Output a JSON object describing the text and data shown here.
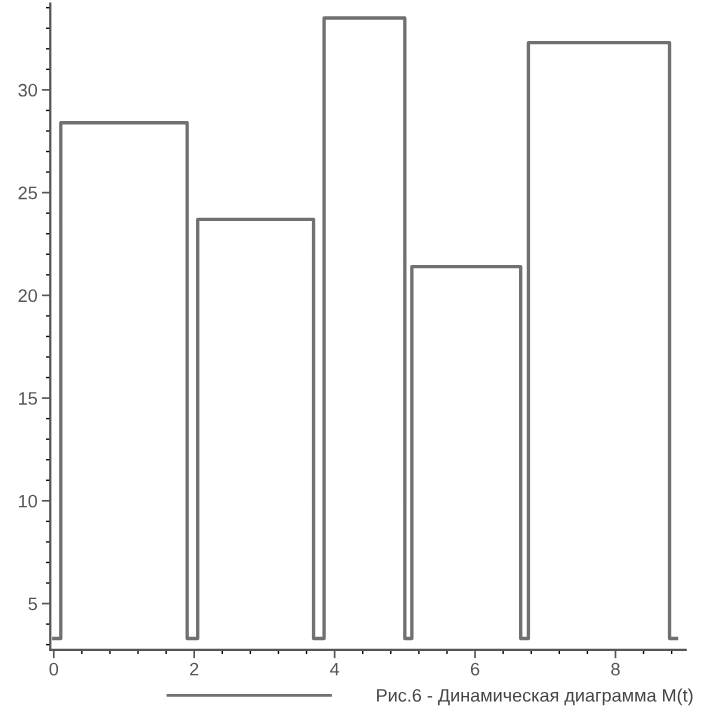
{
  "chart_data": {
    "type": "line",
    "x": [
      0.0,
      0.1,
      0.1,
      1.9,
      1.9,
      2.05,
      2.05,
      3.7,
      3.7,
      3.85,
      3.85,
      5.0,
      5.0,
      5.1,
      5.1,
      6.65,
      6.65,
      6.76,
      6.76,
      8.77,
      8.77,
      8.87
    ],
    "series": [
      {
        "name": "Рис.6 - Динамическая диаграмма M(t)",
        "color": "#707070",
        "values": [
          3.3,
          3.3,
          28.4,
          28.4,
          3.3,
          3.3,
          23.7,
          23.7,
          3.3,
          3.3,
          33.5,
          33.5,
          3.3,
          3.3,
          21.4,
          21.4,
          3.3,
          3.3,
          32.3,
          32.3,
          3.3,
          3.3
        ]
      }
    ],
    "xlim": [
      -0.05,
      9.0
    ],
    "ylim": [
      2.75,
      34.2
    ],
    "xticks": [
      0,
      2,
      4,
      6,
      8
    ],
    "yticks": [
      5,
      10,
      15,
      20,
      25,
      30
    ],
    "legend": "bottom",
    "grid": false,
    "marker": "none",
    "line_style": "solid"
  }
}
